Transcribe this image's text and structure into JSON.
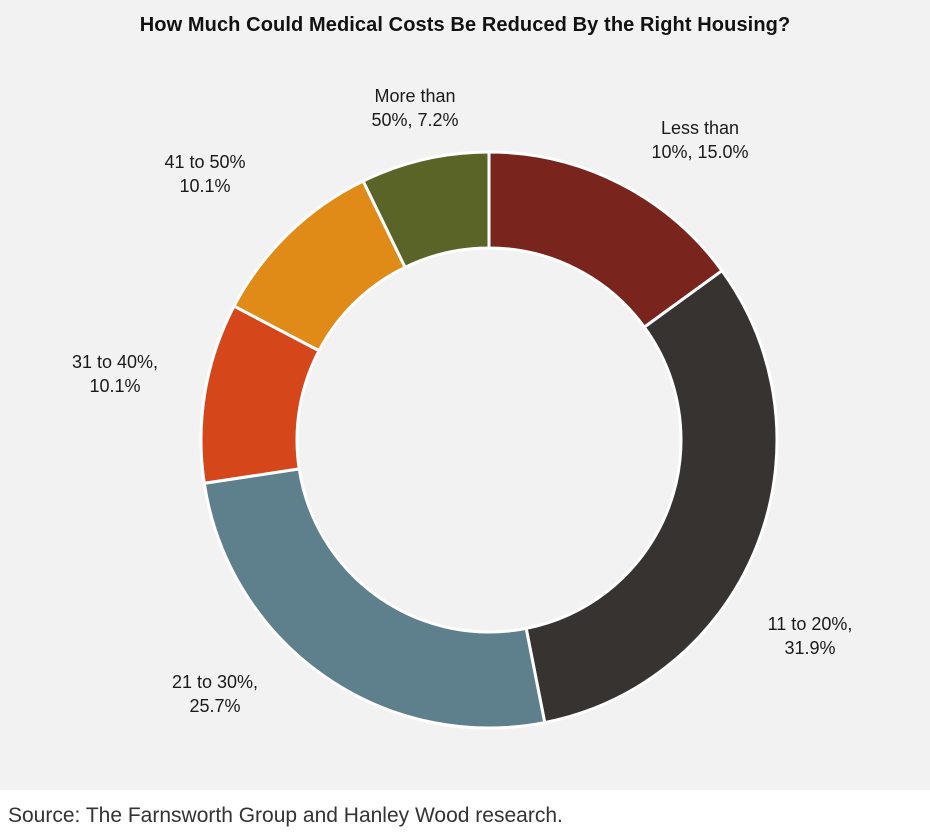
{
  "chart_data": {
    "type": "pie",
    "variant": "donut",
    "title": "How Much Could Medical Costs Be Reduced By the Right Housing?",
    "slices": [
      {
        "label_line1": "Less than",
        "label_line2": "10%, 15.0%",
        "category": "Less than 10%",
        "value": 15.0,
        "color": "#7a241e"
      },
      {
        "label_line1": "11 to 20%,",
        "label_line2": "31.9%",
        "category": "11 to 20%",
        "value": 31.9,
        "color": "#373330"
      },
      {
        "label_line1": "21 to 30%,",
        "label_line2": "25.7%",
        "category": "21 to 30%",
        "value": 25.7,
        "color": "#5e7f8c"
      },
      {
        "label_line1": "31 to 40%,",
        "label_line2": "10.1%",
        "category": "31 to 40%",
        "value": 10.1,
        "color": "#d6461b"
      },
      {
        "label_line1": "41 to 50%",
        "label_line2": "10.1%",
        "category": "41 to 50%",
        "value": 10.1,
        "color": "#e08a18"
      },
      {
        "label_line1": "More than",
        "label_line2": "50%, 7.2%",
        "category": "More than 50%",
        "value": 7.2,
        "color": "#5a6426"
      }
    ]
  },
  "source": "Source: The Farnsworth Group and Hanley Wood research."
}
